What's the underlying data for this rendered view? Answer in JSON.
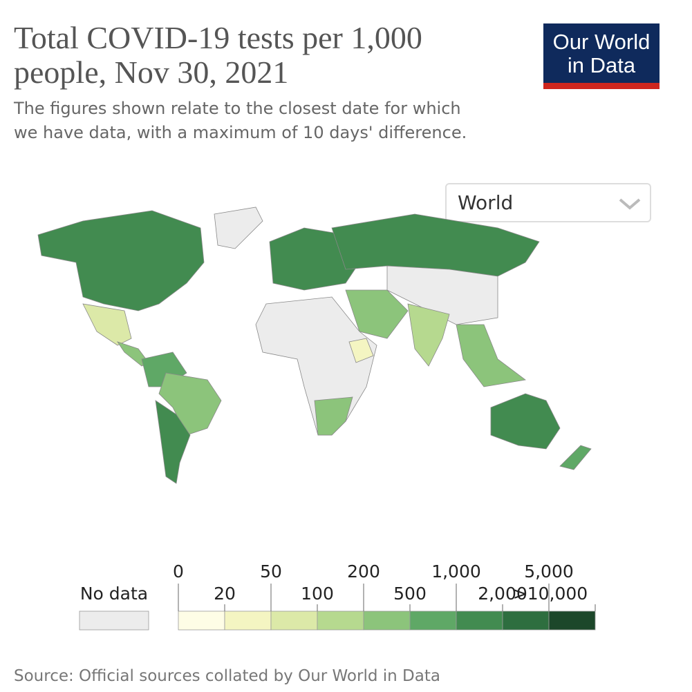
{
  "header": {
    "title": "Total COVID-19 tests per 1,000 people, Nov 30, 2021",
    "subtitle": "The figures shown relate to the closest date for which we have data, with a maximum of 10 days' difference.",
    "logo": [
      "Our World",
      "in Data"
    ]
  },
  "dropdown": {
    "selected": "World"
  },
  "chart_data": {
    "type": "choropleth",
    "legend": {
      "no_data_label": "No data",
      "no_data_color": "#ececec",
      "bins": [
        0,
        20,
        50,
        100,
        200,
        500,
        {
          "value": 1000,
          "label": "1,000"
        },
        {
          "value": 2000,
          "label": "2,000"
        },
        {
          "value": 5000,
          "label": "5,000"
        },
        {
          "value": 10000,
          "label": ">10,000"
        }
      ],
      "colors": [
        "#fefde6",
        "#f4f5c2",
        "#dce9a8",
        "#b6d98f",
        "#8cc47b",
        "#5fa866",
        "#428b50",
        "#2e6e3f",
        "#1c472a"
      ]
    }
  },
  "source": "Source: Official sources collated by Our World in Data"
}
